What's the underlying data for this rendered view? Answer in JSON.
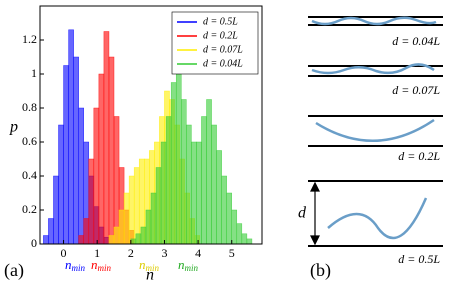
{
  "chart_data": {
    "type": "histogram",
    "xlabel": "n",
    "ylabel": "p",
    "panel_label": "(a)",
    "xlim": [
      -0.7,
      5.9
    ],
    "ylim": [
      0,
      1.4
    ],
    "xticks": [
      0,
      1,
      2,
      3,
      4,
      5
    ],
    "yticks": [
      0,
      0.2,
      0.4,
      0.6,
      0.8,
      1,
      1.2
    ],
    "legend": "upper right",
    "series": [
      {
        "name": "d = 0.5L",
        "color": "#0000ff",
        "bins": [
          -0.6,
          -0.45,
          -0.3,
          -0.15,
          0,
          0.15,
          0.3,
          0.45,
          0.6,
          0.75,
          0.9,
          1.05,
          1.2,
          1.35
        ],
        "values": [
          0.05,
          0.15,
          0.4,
          0.7,
          1.05,
          1.26,
          1.1,
          0.8,
          0.6,
          0.4,
          0.22,
          0.1,
          0.04
        ]
      },
      {
        "name": "d = 0.2L",
        "color": "#ff0000",
        "bins": [
          0.45,
          0.6,
          0.75,
          0.9,
          1.05,
          1.2,
          1.35,
          1.5,
          1.65,
          1.8,
          1.95,
          2.1
        ],
        "values": [
          0.05,
          0.15,
          0.5,
          0.8,
          1.0,
          1.25,
          1.1,
          0.75,
          0.45,
          0.2,
          0.08
        ]
      },
      {
        "name": "d = 0.07L",
        "color": "#ffee00",
        "bins": [
          1.35,
          1.5,
          1.65,
          1.8,
          1.95,
          2.1,
          2.25,
          2.4,
          2.55,
          2.7,
          2.85,
          3.0,
          3.15,
          3.3,
          3.45,
          3.6,
          3.75,
          3.9,
          4.05
        ],
        "values": [
          0.05,
          0.1,
          0.2,
          0.3,
          0.4,
          0.45,
          0.5,
          0.5,
          0.55,
          0.6,
          0.75,
          0.9,
          0.85,
          0.7,
          0.5,
          0.3,
          0.15,
          0.05
        ]
      },
      {
        "name": "d = 0.04L",
        "color": "#33cc33",
        "bins": [
          2.0,
          2.15,
          2.3,
          2.45,
          2.6,
          2.75,
          2.9,
          3.05,
          3.2,
          3.35,
          3.5,
          3.65,
          3.8,
          3.95,
          4.1,
          4.25,
          4.4,
          4.55,
          4.7,
          4.85,
          5.0,
          5.15,
          5.3,
          5.45,
          5.6
        ],
        "values": [
          0.03,
          0.06,
          0.1,
          0.2,
          0.3,
          0.45,
          0.6,
          0.75,
          0.95,
          1.0,
          0.85,
          0.7,
          0.6,
          0.6,
          0.75,
          0.85,
          0.7,
          0.55,
          0.4,
          0.3,
          0.2,
          0.12,
          0.06,
          0.03
        ]
      }
    ],
    "annotations": [
      {
        "text": "n",
        "sub": "min",
        "color": "#0000ff"
      },
      {
        "text": "n",
        "sub": "min",
        "color": "#ff0000"
      },
      {
        "text": "n",
        "sub": "min",
        "color": "#ddcc00"
      },
      {
        "text": "n",
        "sub": "min",
        "color": "#22aa22"
      }
    ]
  },
  "panel_b": {
    "panel_label": "(b)",
    "gap_label": "d",
    "labels": [
      "d = 0.04L",
      "d = 0.07L",
      "d = 0.2L",
      "d = 0.5L"
    ]
  }
}
